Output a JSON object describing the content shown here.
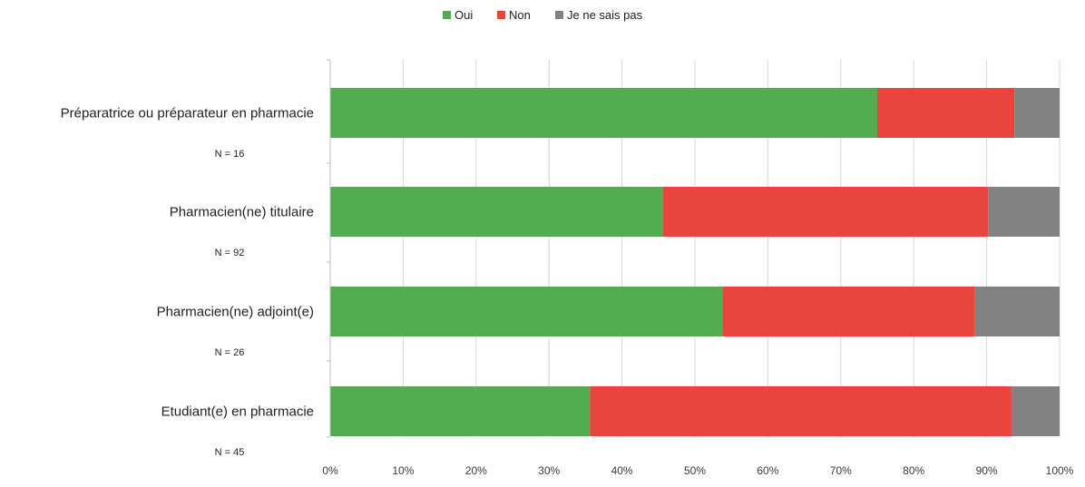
{
  "chart_data": {
    "type": "bar",
    "orientation": "horizontal",
    "stacked": "percent",
    "categories": [
      "Préparatrice ou préparateur en pharmacie",
      "Pharmacien(ne) titulaire",
      "Pharmacien(ne) adjoint(e)",
      "Etudiant(e) en pharmacie"
    ],
    "sample_sizes": [
      "N = 16",
      "N = 92",
      "N = 26",
      "N = 45"
    ],
    "series": [
      {
        "name": "Oui",
        "color": "#52ad4f",
        "values": [
          75.0,
          45.6,
          53.8,
          35.6
        ]
      },
      {
        "name": "Non",
        "color": "#e8453c",
        "values": [
          18.8,
          44.6,
          34.6,
          57.8
        ]
      },
      {
        "name": "Je ne sais pas",
        "color": "#828282",
        "values": [
          6.2,
          9.8,
          11.6,
          6.6
        ]
      }
    ],
    "x_ticks": [
      "0%",
      "10%",
      "20%",
      "30%",
      "40%",
      "50%",
      "60%",
      "70%",
      "80%",
      "90%",
      "100%"
    ],
    "xlim": [
      0,
      100
    ],
    "grid": true,
    "legend_position": "top-center"
  }
}
